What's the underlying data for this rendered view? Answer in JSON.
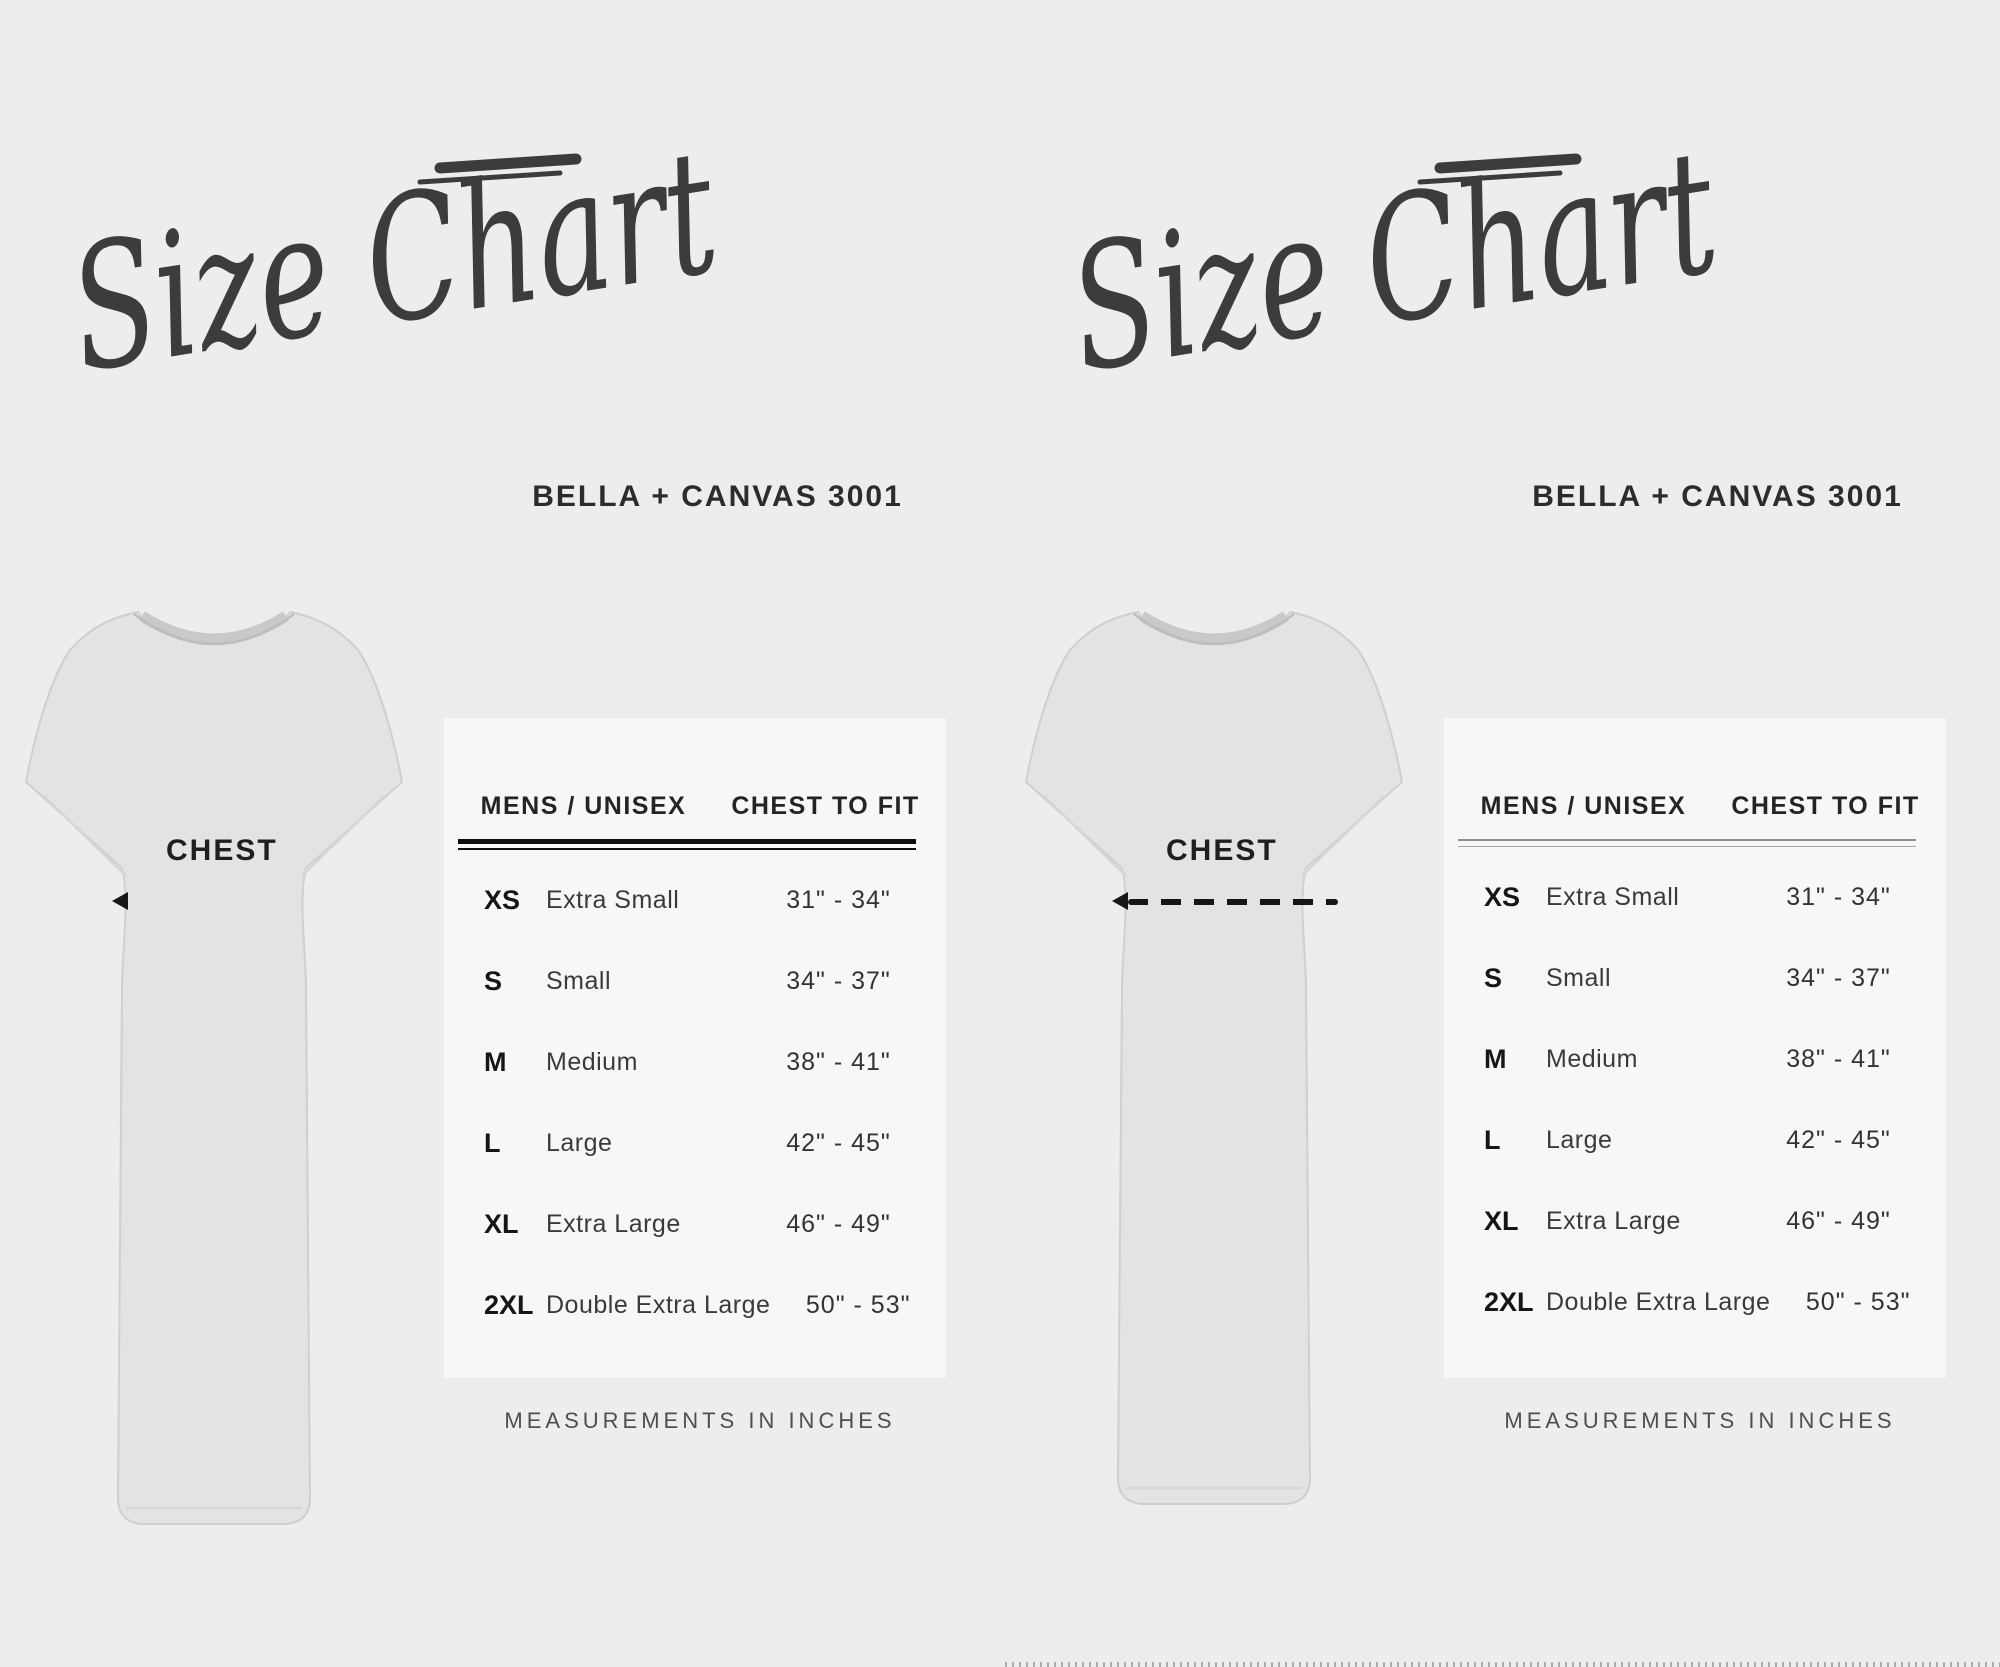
{
  "panel": {
    "title_script": "Size Chart",
    "brand_heading": "BELLA + CANVAS 3001",
    "shirt": {
      "chest_label": "CHEST"
    },
    "table": {
      "columns": {
        "left": "MENS / UNISEX",
        "right": "CHEST TO FIT"
      },
      "rows": [
        {
          "abbr": "XS",
          "name": "Extra Small",
          "range": "31\" - 34\""
        },
        {
          "abbr": "S",
          "name": "Small",
          "range": "34\" - 37\""
        },
        {
          "abbr": "M",
          "name": "Medium",
          "range": "38\" - 41\""
        },
        {
          "abbr": "L",
          "name": "Large",
          "range": "42\" - 45\""
        },
        {
          "abbr": "XL",
          "name": "Extra Large",
          "range": "46\" - 49\""
        },
        {
          "abbr": "2XL",
          "name": "Double Extra Large",
          "range": "50\" - 53\""
        }
      ]
    },
    "footnote": "MEASUREMENTS IN INCHES"
  },
  "colors": {
    "page_background": "#EDEDEE",
    "table_box_background": "#F7F7F7",
    "ink": "#2F2F2F",
    "rule_line": "#0D0D0D",
    "shirt_fill": "#E3E3E4"
  }
}
